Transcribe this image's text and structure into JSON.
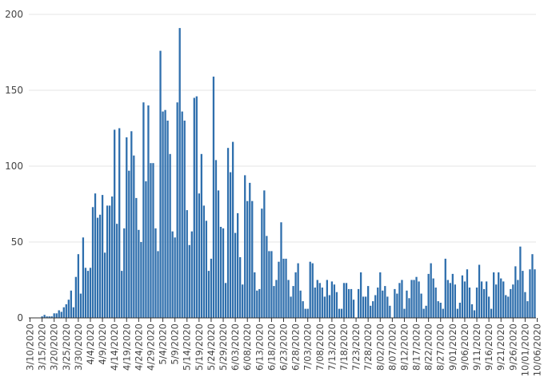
{
  "chart_data": {
    "type": "bar",
    "title": "",
    "xlabel": "",
    "ylabel": "",
    "ylim": [
      0,
      200
    ],
    "yticks": [
      0,
      50,
      100,
      150,
      200
    ],
    "grid": "horizontal",
    "bar_color": "#2f6fad",
    "start_date": "2020-03-10",
    "x_tick_labels": [
      "3/10/2020",
      "3/15/2020",
      "3/20/2020",
      "3/25/2020",
      "3/30/2020",
      "4/4/2020",
      "4/9/2020",
      "4/14/2020",
      "4/19/2020",
      "4/24/2020",
      "4/29/2020",
      "5/4/2020",
      "5/9/2020",
      "5/14/2020",
      "5/19/2020",
      "5/24/2020",
      "5/29/2020",
      "6/03/2020",
      "6/08/2020",
      "6/13/2020",
      "6/18/2020",
      "6/23/2020",
      "6/28/2020",
      "7/03/2020",
      "7/08/2020",
      "7/13/2020",
      "7/18/2020",
      "7/23/2020",
      "7/28/2020",
      "8/02/2020",
      "8/07/2020",
      "8/12/2020",
      "8/17/2020",
      "8/22/2020",
      "8/27/2020",
      "9/01/2020",
      "9/06/2020",
      "9/11/2020",
      "9/16/2020",
      "9/21/2020",
      "9/26/2020",
      "10/01/2020",
      "10/06/2020"
    ],
    "values": [
      0,
      0,
      0,
      0,
      0,
      1,
      2,
      1,
      1,
      1,
      3,
      3,
      5,
      4,
      7,
      9,
      12,
      18,
      7,
      27,
      42,
      16,
      53,
      33,
      31,
      33,
      73,
      82,
      66,
      68,
      81,
      43,
      74,
      74,
      80,
      124,
      62,
      125,
      31,
      59,
      119,
      97,
      123,
      107,
      79,
      58,
      50,
      142,
      90,
      140,
      102,
      102,
      59,
      44,
      176,
      136,
      137,
      130,
      108,
      57,
      53,
      142,
      191,
      136,
      130,
      71,
      48,
      57,
      145,
      146,
      82,
      108,
      74,
      64,
      31,
      39,
      159,
      104,
      84,
      60,
      59,
      23,
      112,
      96,
      116,
      56,
      69,
      40,
      22,
      94,
      77,
      89,
      77,
      30,
      18,
      19,
      72,
      84,
      54,
      44,
      44,
      21,
      25,
      37,
      63,
      39,
      39,
      25,
      14,
      21,
      30,
      36,
      18,
      11,
      6,
      6,
      37,
      36,
      20,
      25,
      23,
      20,
      14,
      25,
      15,
      24,
      22,
      17,
      6,
      6,
      23,
      23,
      19,
      19,
      12,
      0,
      19,
      30,
      14,
      14,
      21,
      8,
      11,
      15,
      20,
      30,
      18,
      21,
      14,
      8,
      0,
      19,
      16,
      23,
      25,
      6,
      18,
      13,
      25,
      25,
      27,
      24,
      16,
      6,
      8,
      29,
      36,
      26,
      20,
      11,
      10,
      6,
      39,
      25,
      23,
      29,
      22,
      6,
      10,
      28,
      24,
      32,
      20,
      9,
      5,
      20,
      35,
      24,
      19,
      24,
      14,
      6,
      30,
      22,
      30,
      26,
      24,
      15,
      14,
      19,
      22,
      34,
      25,
      47,
      31,
      17,
      11,
      32,
      42,
      32
    ]
  }
}
